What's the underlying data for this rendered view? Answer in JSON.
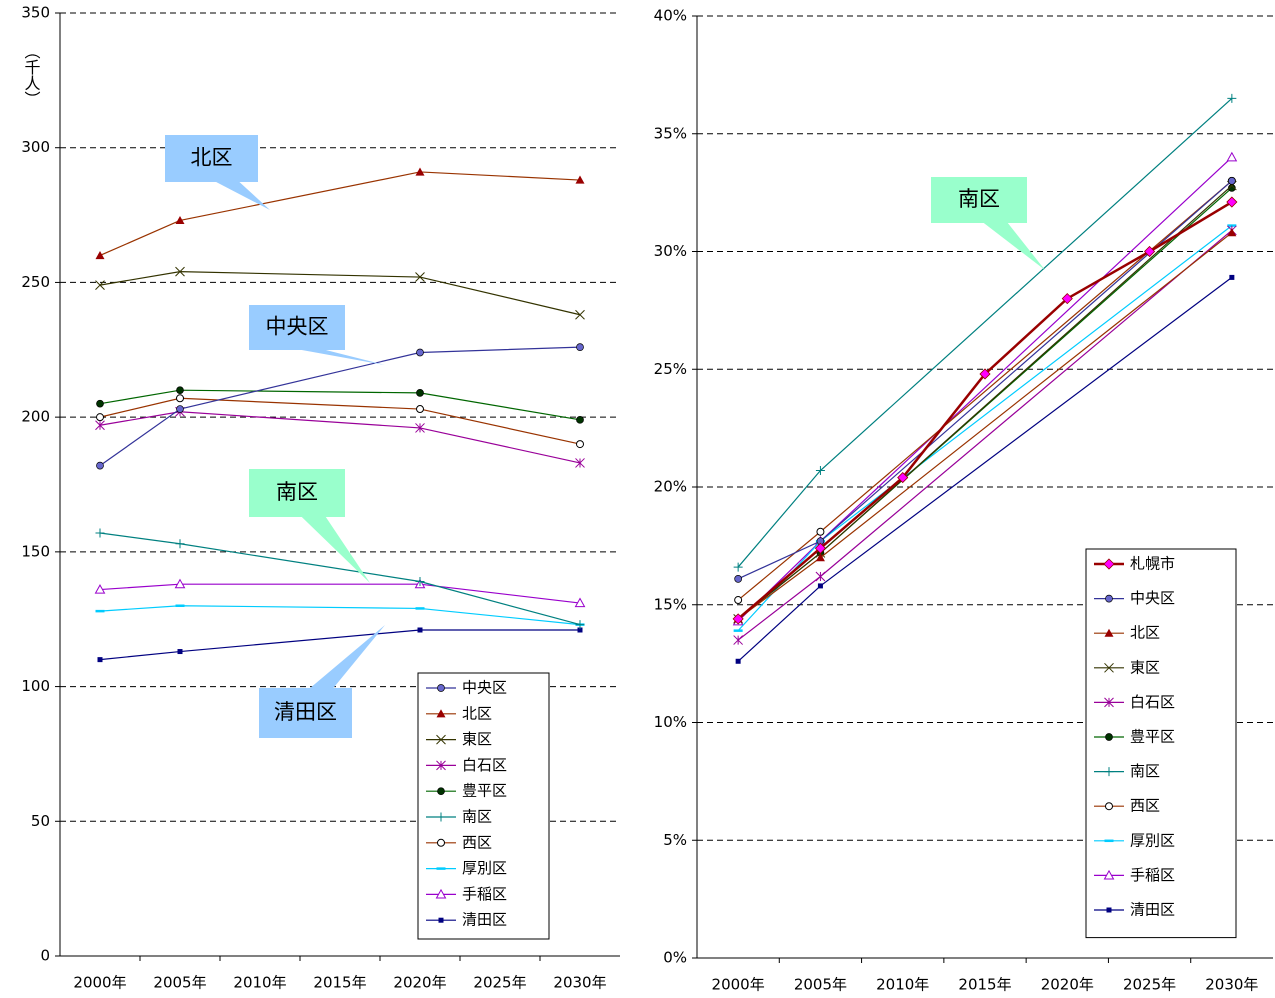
{
  "chart_data": [
    {
      "type": "line",
      "ylabel": "（千人）",
      "x": [
        2000,
        2005,
        2020,
        2030
      ],
      "xlim": [
        1997.5,
        2032.5
      ],
      "xticks": [
        {
          "value": 2000,
          "label": "2000年"
        },
        {
          "value": 2005,
          "label": "2005年"
        },
        {
          "value": 2010,
          "label": "2010年"
        },
        {
          "value": 2015,
          "label": "2015年"
        },
        {
          "value": 2020,
          "label": "2020年"
        },
        {
          "value": 2025,
          "label": "2025年"
        },
        {
          "value": 2030,
          "label": "2030年"
        }
      ],
      "ylim": [
        0,
        350
      ],
      "yticks": [
        0,
        50,
        100,
        150,
        200,
        250,
        300,
        350
      ],
      "grid": true,
      "legend": "lower right",
      "annotations": [
        {
          "text": "北区",
          "color": "#99ccff"
        },
        {
          "text": "中央区",
          "color": "#99ccff"
        },
        {
          "text": "南区",
          "color": "#99ffcc"
        },
        {
          "text": "清田区",
          "color": "#99ccff"
        }
      ],
      "series": [
        {
          "name": "中央区",
          "color": "#333399",
          "marker_color": "#6666cc",
          "marker": "circle",
          "values": [
            182,
            203,
            224,
            226
          ]
        },
        {
          "name": "北区",
          "color": "#993300",
          "marker_color": "#990000",
          "marker": "triangle",
          "values": [
            260,
            273,
            291,
            288
          ]
        },
        {
          "name": "東区",
          "color": "#333300",
          "marker_color": "#333300",
          "marker": "x",
          "values": [
            249,
            254,
            252,
            238
          ]
        },
        {
          "name": "白石区",
          "color": "#990099",
          "marker_color": "#990099",
          "marker": "star",
          "values": [
            197,
            202,
            196,
            183
          ]
        },
        {
          "name": "豊平区",
          "color": "#006600",
          "marker_color": "#003300",
          "marker": "circle",
          "values": [
            205,
            210,
            209,
            199
          ]
        },
        {
          "name": "南区",
          "color": "#008080",
          "marker_color": "#008080",
          "marker": "plus",
          "values": [
            157,
            153,
            139,
            123
          ]
        },
        {
          "name": "西区",
          "color": "#993300",
          "marker_color": "#000000",
          "marker": "open-circle",
          "values": [
            200,
            207,
            203,
            190
          ]
        },
        {
          "name": "厚別区",
          "color": "#00ccff",
          "marker_color": "#00ccff",
          "marker": "dash",
          "values": [
            128,
            130,
            129,
            123
          ]
        },
        {
          "name": "手稲区",
          "color": "#9900cc",
          "marker_color": "#9900cc",
          "marker": "open-triangle",
          "values": [
            136,
            138,
            138,
            131
          ]
        },
        {
          "name": "清田区",
          "color": "#000080",
          "marker_color": "#000080",
          "marker": "square",
          "values": [
            110,
            113,
            121,
            121
          ]
        }
      ]
    },
    {
      "type": "line",
      "xlim": [
        1997.5,
        2032.5
      ],
      "xticks": [
        {
          "value": 2000,
          "label": "2000年"
        },
        {
          "value": 2005,
          "label": "2005年"
        },
        {
          "value": 2010,
          "label": "2010年"
        },
        {
          "value": 2015,
          "label": "2015年"
        },
        {
          "value": 2020,
          "label": "2020年"
        },
        {
          "value": 2025,
          "label": "2025年"
        },
        {
          "value": 2030,
          "label": "2030年"
        }
      ],
      "ylim": [
        0,
        40
      ],
      "yticks": [
        {
          "value": 0,
          "label": "0%"
        },
        {
          "value": 5,
          "label": "5%"
        },
        {
          "value": 10,
          "label": "10%"
        },
        {
          "value": 15,
          "label": "15%"
        },
        {
          "value": 20,
          "label": "20%"
        },
        {
          "value": 25,
          "label": "25%"
        },
        {
          "value": 30,
          "label": "30%"
        },
        {
          "value": 35,
          "label": "35%"
        },
        {
          "value": 40,
          "label": "40%"
        }
      ],
      "grid": true,
      "legend": "lower right",
      "annotations": [
        {
          "text": "南区",
          "color": "#99ffcc"
        }
      ],
      "series": [
        {
          "name": "札幌市",
          "color": "#990000",
          "marker_color": "#ff00ff",
          "marker": "diamond",
          "x": [
            2000,
            2005,
            2010,
            2015,
            2020,
            2025,
            2030
          ],
          "values": [
            14.4,
            17.4,
            20.4,
            24.8,
            28.0,
            30.0,
            32.1
          ]
        },
        {
          "name": "中央区",
          "color": "#333399",
          "marker_color": "#6666cc",
          "marker": "circle",
          "x": [
            2000,
            2005,
            2030
          ],
          "values": [
            16.1,
            17.7,
            33.0
          ]
        },
        {
          "name": "北区",
          "color": "#993300",
          "marker_color": "#990000",
          "marker": "triangle",
          "x": [
            2000,
            2005,
            2030
          ],
          "values": [
            14.4,
            17.0,
            30.8
          ]
        },
        {
          "name": "東区",
          "color": "#333300",
          "marker_color": "#333300",
          "marker": "x",
          "x": [
            2000,
            2005,
            2030
          ],
          "values": [
            14.4,
            17.2,
            32.8
          ]
        },
        {
          "name": "白石区",
          "color": "#990099",
          "marker_color": "#990099",
          "marker": "star",
          "x": [
            2000,
            2005,
            2030
          ],
          "values": [
            13.5,
            16.2,
            30.9
          ]
        },
        {
          "name": "豊平区",
          "color": "#006600",
          "marker_color": "#003300",
          "marker": "circle",
          "x": [
            2000,
            2005,
            2030
          ],
          "values": [
            14.4,
            17.2,
            32.7
          ]
        },
        {
          "name": "南区",
          "color": "#008080",
          "marker_color": "#008080",
          "marker": "plus",
          "x": [
            2000,
            2005,
            2030
          ],
          "values": [
            16.6,
            20.7,
            36.5
          ]
        },
        {
          "name": "西区",
          "color": "#993300",
          "marker_color": "#000000",
          "marker": "open-circle",
          "x": [
            2000,
            2005,
            2030
          ],
          "values": [
            15.2,
            18.1,
            33.0
          ]
        },
        {
          "name": "厚別区",
          "color": "#00ccff",
          "marker_color": "#00ccff",
          "marker": "dash",
          "x": [
            2000,
            2005,
            2030
          ],
          "values": [
            13.9,
            17.7,
            31.1
          ]
        },
        {
          "name": "手稲区",
          "color": "#9900cc",
          "marker_color": "#9900cc",
          "marker": "open-triangle",
          "x": [
            2000,
            2005,
            2030
          ],
          "values": [
            14.3,
            17.7,
            34.0
          ]
        },
        {
          "name": "清田区",
          "color": "#000080",
          "marker_color": "#000080",
          "marker": "square",
          "x": [
            2000,
            2005,
            2030
          ],
          "values": [
            12.6,
            15.8,
            28.9
          ]
        }
      ]
    }
  ]
}
